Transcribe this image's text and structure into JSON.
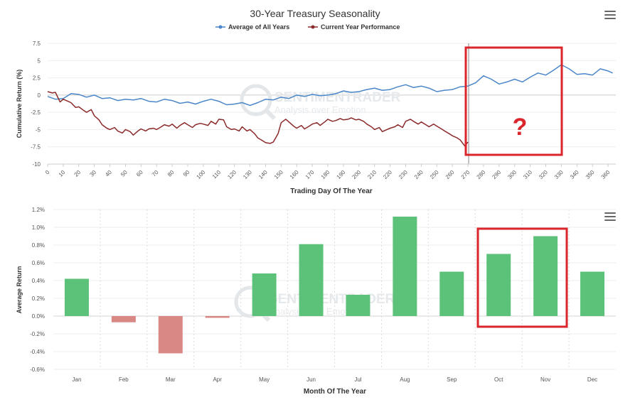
{
  "chart_data": [
    {
      "type": "line",
      "title": "30-Year Treasury Seasonality",
      "xlabel": "Trading Day Of The Year",
      "ylabel": "Cumulative Return (%)",
      "xlim": [
        0,
        365
      ],
      "ylim": [
        -10,
        7.5
      ],
      "x_ticks": [
        0,
        10,
        20,
        30,
        40,
        50,
        60,
        70,
        80,
        90,
        100,
        110,
        120,
        130,
        140,
        150,
        160,
        170,
        180,
        190,
        200,
        210,
        220,
        230,
        240,
        250,
        260,
        270,
        280,
        290,
        300,
        310,
        320,
        330,
        340,
        350,
        360
      ],
      "y_ticks": [
        -10,
        -7.5,
        -5,
        -2.5,
        0,
        2.5,
        5,
        7.5
      ],
      "legend": "top-center",
      "series": [
        {
          "name": "Average of All Years",
          "color": "#4a86c8",
          "x": [
            0,
            5,
            10,
            15,
            20,
            25,
            30,
            35,
            40,
            45,
            50,
            55,
            60,
            65,
            70,
            75,
            80,
            85,
            90,
            95,
            100,
            105,
            110,
            115,
            120,
            125,
            130,
            135,
            140,
            145,
            150,
            155,
            160,
            165,
            170,
            175,
            180,
            185,
            190,
            195,
            200,
            205,
            210,
            215,
            220,
            225,
            230,
            235,
            240,
            245,
            250,
            255,
            260,
            265,
            270,
            275,
            280,
            285,
            290,
            295,
            300,
            305,
            310,
            315,
            320,
            325,
            330,
            335,
            340,
            345,
            350,
            355,
            360,
            363
          ],
          "y": [
            -0.2,
            -0.6,
            -0.5,
            0.2,
            0.1,
            -0.3,
            0.0,
            -0.5,
            -0.4,
            -0.8,
            -0.6,
            -0.7,
            -0.5,
            -0.9,
            -1.0,
            -0.6,
            -0.8,
            -1.2,
            -1.0,
            -1.3,
            -0.9,
            -0.6,
            -0.9,
            -1.4,
            -1.3,
            -1.1,
            -1.5,
            -1.1,
            -0.6,
            -0.7,
            -0.3,
            -0.5,
            0.0,
            -0.2,
            0.1,
            -0.1,
            0.0,
            0.2,
            0.6,
            0.4,
            0.5,
            0.8,
            1.0,
            0.7,
            0.8,
            1.2,
            1.5,
            1.1,
            1.3,
            1.0,
            0.5,
            0.7,
            0.8,
            1.2,
            1.3,
            1.8,
            2.8,
            2.3,
            1.6,
            1.9,
            2.3,
            1.9,
            2.6,
            3.2,
            2.9,
            3.6,
            4.4,
            3.8,
            3.0,
            3.1,
            2.9,
            3.8,
            3.5,
            3.2
          ]
        },
        {
          "name": "Current Year Performance",
          "color": "#8b2a2a",
          "x": [
            0,
            3,
            5,
            8,
            10,
            13,
            15,
            18,
            20,
            23,
            25,
            28,
            30,
            33,
            35,
            38,
            40,
            43,
            45,
            48,
            50,
            53,
            55,
            58,
            60,
            63,
            65,
            68,
            70,
            73,
            75,
            78,
            80,
            83,
            85,
            88,
            90,
            93,
            95,
            98,
            100,
            103,
            105,
            108,
            110,
            113,
            115,
            118,
            120,
            123,
            125,
            128,
            130,
            133,
            135,
            138,
            140,
            143,
            145,
            148,
            150,
            153,
            155,
            158,
            160,
            163,
            165,
            168,
            170,
            173,
            175,
            178,
            180,
            183,
            185,
            188,
            190,
            193,
            195,
            198,
            200,
            203,
            205,
            208,
            210,
            213,
            215,
            218,
            220,
            223,
            225,
            228,
            230,
            233,
            235,
            238,
            240,
            243,
            245,
            248,
            250,
            253,
            255,
            258,
            260,
            263,
            265,
            268,
            270
          ],
          "y": [
            0.5,
            0.3,
            0.4,
            -1.0,
            -0.6,
            -0.9,
            -1.1,
            -1.8,
            -1.7,
            -2.2,
            -2.5,
            -2.1,
            -3.0,
            -3.6,
            -4.3,
            -4.8,
            -5.0,
            -4.7,
            -5.2,
            -5.5,
            -5.0,
            -5.3,
            -5.8,
            -5.2,
            -4.9,
            -5.2,
            -4.9,
            -4.8,
            -5.0,
            -4.6,
            -4.3,
            -4.5,
            -4.2,
            -4.8,
            -4.4,
            -4.0,
            -4.3,
            -4.7,
            -4.3,
            -4.1,
            -4.2,
            -4.4,
            -3.8,
            -4.2,
            -3.5,
            -3.6,
            -4.6,
            -5.0,
            -4.9,
            -5.2,
            -4.6,
            -5.2,
            -5.0,
            -5.6,
            -6.2,
            -6.6,
            -6.9,
            -7.0,
            -6.8,
            -5.6,
            -4.0,
            -3.5,
            -3.9,
            -4.5,
            -4.8,
            -4.4,
            -4.9,
            -4.5,
            -4.2,
            -4.0,
            -4.4,
            -3.9,
            -3.5,
            -3.8,
            -3.7,
            -3.4,
            -3.6,
            -3.5,
            -3.3,
            -3.6,
            -3.5,
            -3.8,
            -4.2,
            -4.6,
            -5.0,
            -4.7,
            -5.3,
            -5.0,
            -4.8,
            -4.6,
            -4.3,
            -4.7,
            -3.8,
            -3.5,
            -3.8,
            -4.2,
            -3.9,
            -4.3,
            -4.6,
            -4.2,
            -4.5,
            -4.9,
            -5.2,
            -5.6,
            -5.9,
            -6.2,
            -6.5,
            -7.4,
            -6.8
          ]
        }
      ],
      "annotation": "?"
    },
    {
      "type": "bar",
      "xlabel": "Month Of The Year",
      "ylabel": "Average Return",
      "categories": [
        "Jan",
        "Feb",
        "Mar",
        "Apr",
        "May",
        "Jun",
        "Jul",
        "Aug",
        "Sep",
        "Oct",
        "Nov",
        "Dec"
      ],
      "values": [
        0.42,
        -0.07,
        -0.42,
        -0.02,
        0.48,
        0.81,
        0.24,
        1.12,
        0.5,
        0.7,
        0.9,
        0.5
      ],
      "ylim": [
        -0.6,
        1.2
      ],
      "y_ticks": [
        "-0.6%",
        "-0.4%",
        "-0.2%",
        "0.0%",
        "0.2%",
        "0.4%",
        "0.6%",
        "0.8%",
        "1.0%",
        "1.2%"
      ],
      "positive_color": "#5cc27a",
      "negative_color": "#d98886"
    }
  ],
  "watermark": {
    "brand": "SENTIMENTRADER",
    "tagline": "Analysis over Emotion"
  },
  "icons": {
    "menu": "hamburger-menu-icon"
  },
  "highlight_color": "#d9252b"
}
